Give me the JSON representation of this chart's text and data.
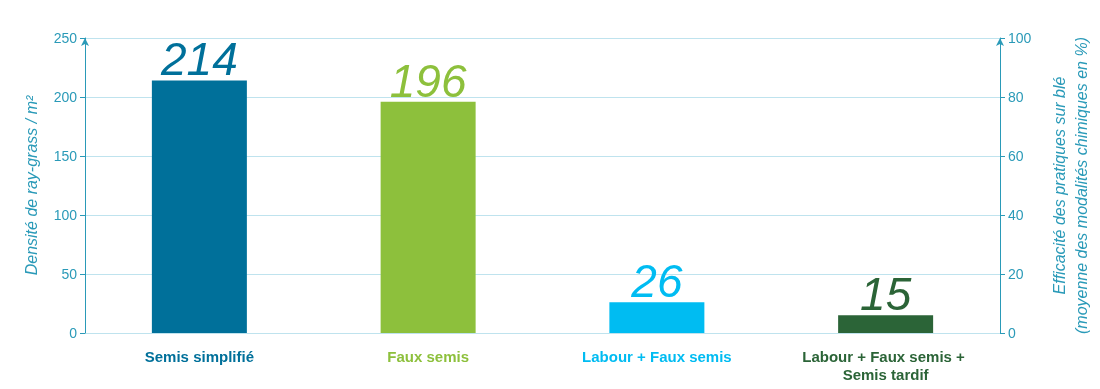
{
  "chart_data": {
    "type": "bar",
    "categories": [
      "Semis simplifié",
      "Faux semis",
      "Labour + Faux semis",
      "Labour + Faux semis + Semis tardif"
    ],
    "values": [
      214,
      196,
      26,
      15
    ],
    "colors": [
      "#00709a",
      "#8dc03c",
      "#00bcf2",
      "#2b6437"
    ],
    "ylabel": "Densité de ray-grass / m²",
    "y2label": "Efficacité des pratiques sur blé\n(moyenne des modalités chimiques en %)",
    "ylim": [
      0,
      250
    ],
    "yticks": [
      0,
      50,
      100,
      150,
      200,
      250
    ],
    "y2lim": [
      0,
      100
    ],
    "y2ticks": [
      0,
      20,
      40,
      60,
      80,
      100
    ],
    "grid": "y",
    "data_labels": true
  }
}
